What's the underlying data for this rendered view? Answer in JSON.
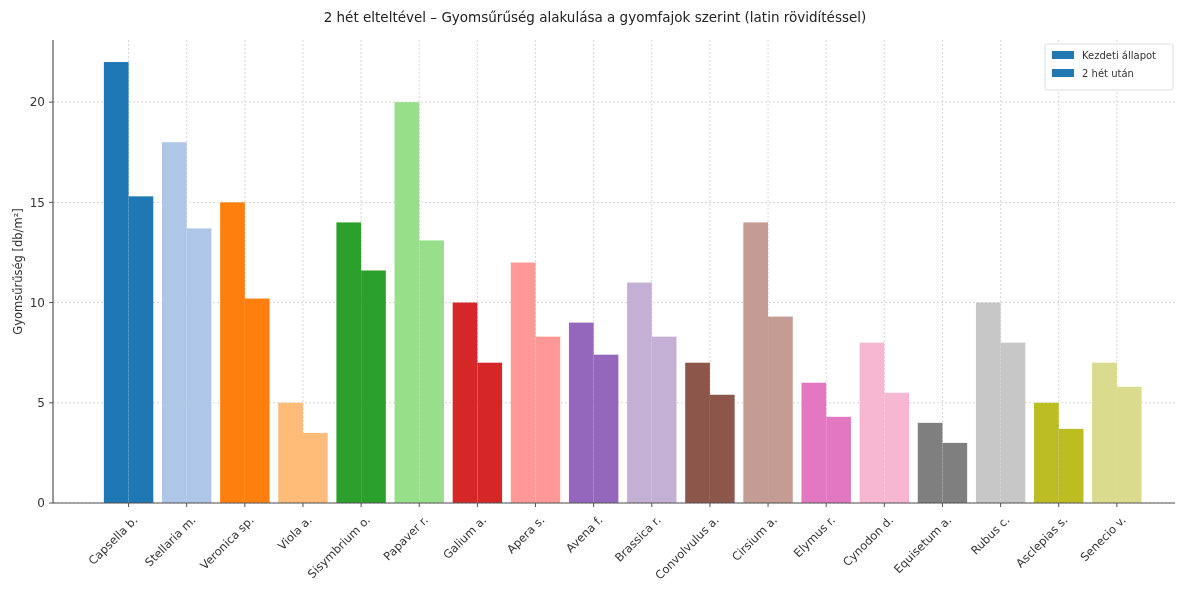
{
  "chart_data": {
    "type": "bar",
    "title": "2 hét elteltével – Gyomsűrűség alakulása a gyomfajok szerint (latin rövidítéssel)",
    "ylabel": "Gyomsűrűség [db/m²]",
    "categories": [
      "Capsella b.",
      "Stellaria m.",
      "Veronica sp.",
      "Viola a.",
      "Sisymbrium o.",
      "Papaver r.",
      "Galium a.",
      "Apera s.",
      "Avena f.",
      "Brassica r.",
      "Convolvulus a.",
      "Cirsium a.",
      "Elymus r.",
      "Cynodon d.",
      "Equisetum a.",
      "Rubus c.",
      "Asclepias s.",
      "Senecio v."
    ],
    "series": [
      {
        "name": "Kezdeti állapot",
        "color": "#1f77b4",
        "colors": [
          "#1f77b4",
          "#aec7e8",
          "#ff7f0e",
          "#ffbb78",
          "#2ca02c",
          "#98df8a",
          "#d62728",
          "#ff9896",
          "#9467bd",
          "#c5b0d5",
          "#8c564b",
          "#c49c94",
          "#e377c2",
          "#f7b6d2",
          "#7f7f7f",
          "#c7c7c7",
          "#bcbd22",
          "#dbdb8d"
        ],
        "values": [
          22,
          18,
          15,
          5,
          14,
          20,
          10,
          12,
          9,
          11,
          7,
          14,
          6,
          8,
          4,
          10,
          5,
          7
        ]
      },
      {
        "name": "2 hét után",
        "color": "#1f77b4",
        "colors": [
          "#1f77b4",
          "#aec7e8",
          "#ff7f0e",
          "#ffbb78",
          "#2ca02c",
          "#98df8a",
          "#d62728",
          "#ff9896",
          "#9467bd",
          "#c5b0d5",
          "#8c564b",
          "#c49c94",
          "#e377c2",
          "#f7b6d2",
          "#7f7f7f",
          "#c7c7c7",
          "#bcbd22",
          "#dbdb8d"
        ],
        "values": [
          15.3,
          13.7,
          10.2,
          3.5,
          11.6,
          13.1,
          7.0,
          8.3,
          7.4,
          8.3,
          5.4,
          9.3,
          4.3,
          5.5,
          3.0,
          8.0,
          3.7,
          5.8
        ]
      }
    ],
    "ylim": [
      0,
      23.1
    ],
    "yticks": [
      0,
      5,
      10,
      15,
      20
    ],
    "grid": true,
    "legend": "top right"
  }
}
